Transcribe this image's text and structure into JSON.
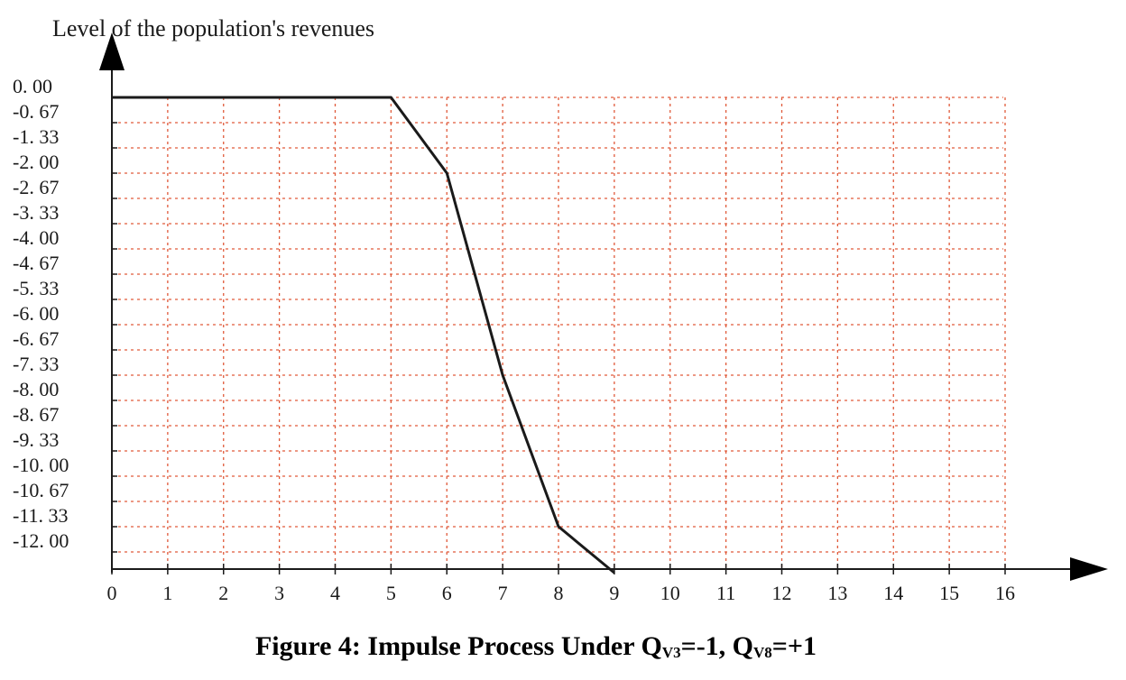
{
  "chart_data": {
    "type": "line",
    "ylabel": "Level of the population's revenues",
    "xlabel": "",
    "x_ticks": [
      "0",
      "1",
      "2",
      "3",
      "4",
      "5",
      "6",
      "7",
      "8",
      "9",
      "10",
      "11",
      "12",
      "13",
      "14",
      "15",
      "16"
    ],
    "y_ticks": [
      "0. 00",
      "-0. 67",
      "-1. 33",
      "-2. 00",
      "-2. 67",
      "-3. 33",
      "-4. 00",
      "-4. 67",
      "-5. 33",
      "-6. 00",
      "-6. 67",
      "-7. 33",
      "-8. 00",
      "-8. 67",
      "-9. 33",
      "-10. 00",
      "-10. 67",
      "-11. 33",
      "-12. 00"
    ],
    "xlim": [
      0,
      16
    ],
    "ylim": [
      -12.55,
      0
    ],
    "grid": true,
    "grid_style": "dotted",
    "series": [
      {
        "x": [
          0,
          1,
          2,
          3,
          4,
          5,
          6,
          7,
          8,
          9
        ],
        "y": [
          0,
          0,
          0,
          0,
          0,
          0,
          -2,
          -7.33,
          -11.33,
          -12.55
        ]
      }
    ]
  },
  "caption": {
    "prefix": "Figure 4: Impulse Process Under Q",
    "sub1": "V3",
    "mid": "=-1, Q",
    "sub2": "V8",
    "suffix": "=+1"
  },
  "colors": {
    "grid": "#e05a3a",
    "line": "#1a1a1a",
    "axis": "#1a1a1a"
  }
}
